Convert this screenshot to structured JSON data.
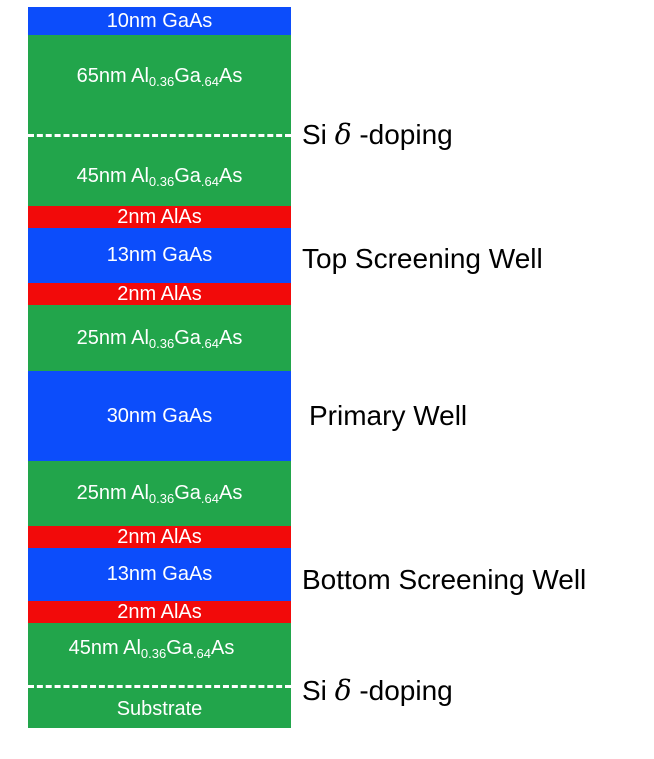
{
  "layers": [
    {
      "thickness": "10nm",
      "material": "GaAs",
      "color": "blue"
    },
    {
      "thickness": "65nm",
      "material": "Al0.36Ga.64As",
      "color": "green"
    },
    {
      "thickness": "45nm",
      "material": "Al0.36Ga.64As",
      "color": "green"
    },
    {
      "thickness": "2nm",
      "material": "AlAs",
      "color": "red"
    },
    {
      "thickness": "13nm",
      "material": "GaAs",
      "color": "blue"
    },
    {
      "thickness": "2nm",
      "material": "AlAs",
      "color": "red"
    },
    {
      "thickness": "25nm",
      "material": "Al0.36Ga.64As",
      "color": "green"
    },
    {
      "thickness": "30nm",
      "material": "GaAs",
      "color": "blue"
    },
    {
      "thickness": "25nm",
      "material": "Al0.36Ga.64As",
      "color": "green"
    },
    {
      "thickness": "2nm",
      "material": "AlAs",
      "color": "red"
    },
    {
      "thickness": "13nm",
      "material": "GaAs",
      "color": "blue"
    },
    {
      "thickness": "2nm",
      "material": "AlAs",
      "color": "red"
    },
    {
      "thickness": "45nm",
      "material": "Al0.36Ga.64As",
      "color": "green"
    },
    {
      "thickness": "",
      "material": "Substrate",
      "color": "green"
    }
  ],
  "text": {
    "l0": "10nm GaAs",
    "l1_pre": "65nm Al",
    "l1_sub1": "0.36",
    "l1_mid": "Ga",
    "l1_sub2": ".64",
    "l1_post": "As",
    "l2_pre": "45nm Al",
    "l2_sub1": "0.36",
    "l2_mid": "Ga",
    "l2_sub2": ".64",
    "l2_post": "As",
    "l3": "2nm AlAs",
    "l4": "13nm GaAs",
    "l5": "2nm AlAs",
    "l6_pre": "25nm Al",
    "l6_sub1": "0.36",
    "l6_mid": "Ga",
    "l6_sub2": ".64",
    "l6_post": "As",
    "l7": "30nm GaAs",
    "l8_pre": "25nm Al",
    "l8_sub1": "0.36",
    "l8_mid": "Ga",
    "l8_sub2": ".64",
    "l8_post": "As",
    "l9": "2nm AlAs",
    "l10": "13nm GaAs",
    "l11": "2nm AlAs",
    "l12_pre": "45nm Al",
    "l12_sub1": "0.36",
    "l12_mid": "Ga",
    "l12_sub2": ".64",
    "l12_post": "As",
    "l13": "Substrate"
  },
  "annotations": {
    "doping_top_pre": "Si ",
    "doping_top_delta": "δ",
    "doping_top_post": " -doping",
    "top_screening_well": "Top Screening Well",
    "primary_well": "Primary Well",
    "bottom_screening_well": "Bottom Screening Well",
    "doping_bottom_pre": "Si ",
    "doping_bottom_delta": "δ",
    "doping_bottom_post": " -doping"
  },
  "colors": {
    "green": "#22a54b",
    "blue": "#0c4dfb",
    "red": "#f20a0a",
    "text_on_layer": "#ffffff",
    "annotation_text": "#000000"
  }
}
